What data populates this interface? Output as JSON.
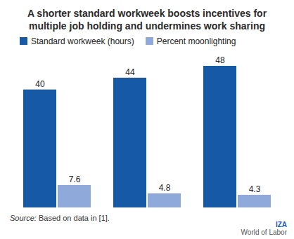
{
  "chart_data": {
    "type": "bar",
    "title": "A shorter standard workweek boosts incentives for multiple job holding and undermines work sharing",
    "categories": [
      null,
      null,
      null
    ],
    "series": [
      {
        "name": "Standard workweek (hours)",
        "color": "#1559a7",
        "values": [
          40,
          44,
          48
        ]
      },
      {
        "name": "Percent moonlighting",
        "color": "#8fa9db",
        "values": [
          7.6,
          4.8,
          4.3
        ]
      }
    ],
    "ylim": [
      0,
      48
    ],
    "data_labels": true,
    "tick_labels": false,
    "legend": "top",
    "source": "Source: Based on data in [1].",
    "annotations": [
      "IZA",
      "World of Labor"
    ]
  }
}
